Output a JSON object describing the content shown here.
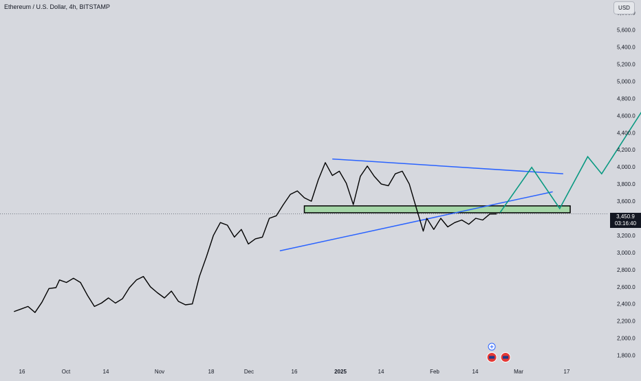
{
  "header": {
    "title": "Ethereum / U.S. Dollar, 4h, BITSTAMP",
    "currency": "USD"
  },
  "last_price": {
    "value": "3,450.9",
    "countdown": "03:16:40"
  },
  "colors": {
    "background": "#d6d8de",
    "candle_line": "#000000",
    "trendline": "#2962ff",
    "projection": "#089981",
    "zone_fill": "#a5d6a7",
    "zone_border": "#000000",
    "text": "#131722",
    "price_tag": "#131722"
  },
  "chart_data": {
    "type": "line",
    "x_labels": [
      "16",
      "Oct",
      "14",
      "Nov",
      "18",
      "Dec",
      "16",
      "2025",
      "14",
      "Feb",
      "14",
      "Mar",
      "17"
    ],
    "y_ticks": [
      "5,800.0",
      "5,600.0",
      "5,400.0",
      "5,200.0",
      "5,000.0",
      "4,800.0",
      "4,600.0",
      "4,400.0",
      "4,200.0",
      "4,000.0",
      "3,800.0",
      "3,600.0",
      "3,400.0",
      "3,200.0",
      "3,000.0",
      "2,800.0",
      "2,600.0",
      "2,400.0",
      "2,200.0",
      "2,000.0",
      "1,800.0"
    ],
    "ylim": [
      1700,
      5950
    ],
    "xlim": [
      -4,
      170
    ],
    "price_series": [
      [
        0,
        2310
      ],
      [
        2,
        2340
      ],
      [
        4,
        2370
      ],
      [
        6,
        2300
      ],
      [
        8,
        2420
      ],
      [
        10,
        2580
      ],
      [
        12,
        2590
      ],
      [
        13,
        2680
      ],
      [
        15,
        2650
      ],
      [
        17,
        2700
      ],
      [
        19,
        2650
      ],
      [
        21,
        2500
      ],
      [
        23,
        2370
      ],
      [
        25,
        2410
      ],
      [
        27,
        2470
      ],
      [
        29,
        2410
      ],
      [
        31,
        2460
      ],
      [
        33,
        2590
      ],
      [
        35,
        2680
      ],
      [
        37,
        2720
      ],
      [
        39,
        2600
      ],
      [
        41,
        2530
      ],
      [
        43,
        2470
      ],
      [
        45,
        2550
      ],
      [
        47,
        2430
      ],
      [
        49,
        2390
      ],
      [
        51,
        2400
      ],
      [
        53,
        2720
      ],
      [
        55,
        2950
      ],
      [
        57,
        3200
      ],
      [
        59,
        3350
      ],
      [
        61,
        3320
      ],
      [
        63,
        3180
      ],
      [
        65,
        3270
      ],
      [
        67,
        3100
      ],
      [
        69,
        3160
      ],
      [
        71,
        3180
      ],
      [
        73,
        3400
      ],
      [
        75,
        3430
      ],
      [
        77,
        3560
      ],
      [
        79,
        3680
      ],
      [
        81,
        3720
      ],
      [
        83,
        3640
      ],
      [
        85,
        3600
      ],
      [
        87,
        3850
      ],
      [
        89,
        4050
      ],
      [
        91,
        3900
      ],
      [
        93,
        3950
      ],
      [
        95,
        3810
      ],
      [
        97,
        3560
      ],
      [
        99,
        3890
      ],
      [
        101,
        4010
      ],
      [
        103,
        3890
      ],
      [
        105,
        3800
      ],
      [
        107,
        3780
      ],
      [
        109,
        3920
      ],
      [
        111,
        3950
      ],
      [
        113,
        3800
      ],
      [
        115,
        3520
      ],
      [
        117,
        3250
      ],
      [
        118,
        3400
      ],
      [
        120,
        3270
      ],
      [
        122,
        3400
      ],
      [
        124,
        3300
      ],
      [
        126,
        3350
      ],
      [
        128,
        3380
      ],
      [
        130,
        3330
      ],
      [
        132,
        3400
      ],
      [
        134,
        3380
      ],
      [
        136,
        3450
      ],
      [
        138,
        3450.9
      ]
    ],
    "last_price": 3450.9,
    "support_zone": {
      "x_start": 83,
      "x_end": 159,
      "y_low": 3465,
      "y_high": 3545
    },
    "trendlines": [
      {
        "kind": "descending-resistance",
        "points": [
          [
            91,
            4093
          ],
          [
            157,
            3920
          ]
        ]
      },
      {
        "kind": "ascending-support",
        "points": [
          [
            76,
            3020
          ],
          [
            154,
            3710
          ]
        ]
      }
    ],
    "projection_path": [
      [
        139,
        3470
      ],
      [
        148,
        3995
      ],
      [
        156,
        3515
      ],
      [
        164,
        4120
      ],
      [
        168,
        3920
      ],
      [
        191,
        5380
      ]
    ],
    "annotations": [
      {
        "kind": "event-icons",
        "x": 136,
        "y": 1800,
        "count": 2
      },
      {
        "kind": "plus-icon",
        "x": 136,
        "y": 1900
      }
    ],
    "grid": false
  }
}
